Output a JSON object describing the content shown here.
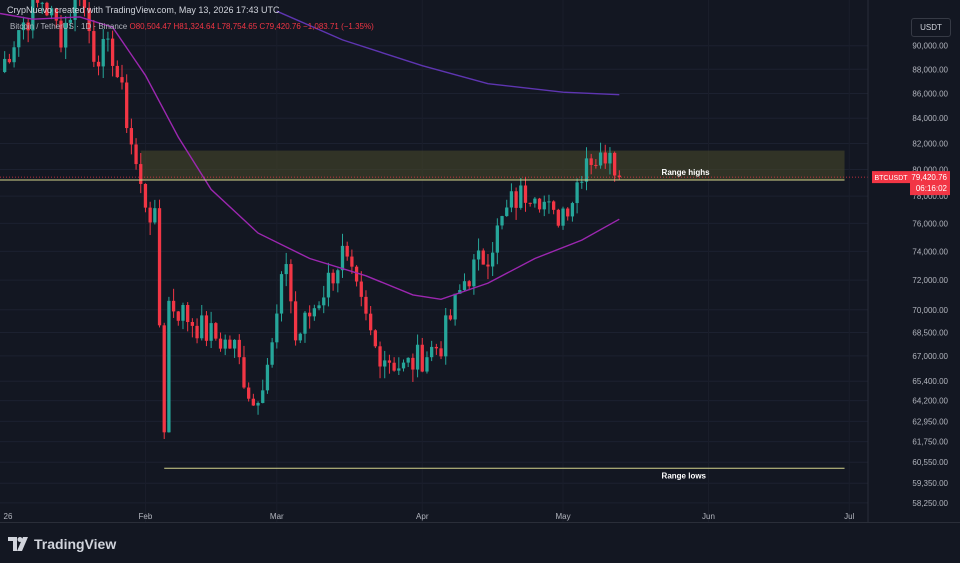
{
  "caption": "CrypNuevo created with TradingView.com, May 13, 2026 17:43 UTC",
  "legend": {
    "symbol": "Bitcoin / TetherUS · 1D · Binance",
    "open": "O80,504.47",
    "high": "H81,324.64",
    "low": "L78,754.65",
    "close": "C79,420.76",
    "change": "−1,083.71 (−1.35%)"
  },
  "currency": "USDT",
  "brand": "TradingView",
  "price_tag": {
    "symbol": "BTCUSDT",
    "price": "79,420.76",
    "countdown": "06:16:02"
  },
  "colors": {
    "up": "#26a69a",
    "down": "#f23645",
    "ma_fast": "#9c27b0",
    "ma_slow": "#5e35b1",
    "zone": "#4b4a2a",
    "level": "#d4d48c"
  },
  "chart_data": {
    "type": "candlestick",
    "title": "",
    "xlabel": "",
    "ylabel": "",
    "x_ticks": [
      "26",
      "Feb",
      "Mar",
      "Apr",
      "May",
      "Jun",
      "Jul"
    ],
    "y_ticks": [
      "90,000.00",
      "88,000.00",
      "86,000.00",
      "84,000.00",
      "82,000.00",
      "80,000.00",
      "78,000.00",
      "76,000.00",
      "74,000.00",
      "72,000.00",
      "70,000.00",
      "68,500.00",
      "67,000.00",
      "65,400.00",
      "64,200.00",
      "62,950.00",
      "61,750.00",
      "60,550.00",
      "59,350.00",
      "58,250.00"
    ],
    "y_scale": "log",
    "ylim": [
      57200,
      94000
    ],
    "date_range": [
      "2026-01-01",
      "2026-07-05"
    ],
    "current_price": 79420.76,
    "annotations": [
      {
        "label": "Range highs",
        "y": 79200,
        "from": "2026-01-01",
        "to": "2026-06-30",
        "zone_top": 81450
      },
      {
        "label": "Range lows",
        "y": 60200,
        "from": "2026-02-05",
        "to": "2026-06-30"
      }
    ],
    "ohlc_pivots": [
      {
        "date": "2026-01-01",
        "close": 87800
      },
      {
        "date": "2026-01-05",
        "close": 91500
      },
      {
        "date": "2026-01-10",
        "close": 94000
      },
      {
        "date": "2026-01-14",
        "close": 91000
      },
      {
        "date": "2026-01-18",
        "close": 95000
      },
      {
        "date": "2026-01-21",
        "close": 89500
      },
      {
        "date": "2026-01-25",
        "close": 89300
      },
      {
        "date": "2026-01-28",
        "close": 84000
      },
      {
        "date": "2026-01-31",
        "close": 78500
      },
      {
        "date": "2026-02-03",
        "close": 76000
      },
      {
        "date": "2026-02-05",
        "close": 62800
      },
      {
        "date": "2026-02-06",
        "close": 70500
      },
      {
        "date": "2026-02-10",
        "close": 69500
      },
      {
        "date": "2026-02-14",
        "close": 68500
      },
      {
        "date": "2026-02-20",
        "close": 67500
      },
      {
        "date": "2026-02-24",
        "close": 64000
      },
      {
        "date": "2026-02-28",
        "close": 67500
      },
      {
        "date": "2026-03-03",
        "close": 73500
      },
      {
        "date": "2026-03-05",
        "close": 68000
      },
      {
        "date": "2026-03-10",
        "close": 70800
      },
      {
        "date": "2026-03-15",
        "close": 73800
      },
      {
        "date": "2026-03-18",
        "close": 71000
      },
      {
        "date": "2026-03-22",
        "close": 67500
      },
      {
        "date": "2026-03-28",
        "close": 66200
      },
      {
        "date": "2026-04-05",
        "close": 67800
      },
      {
        "date": "2026-04-10",
        "close": 72000
      },
      {
        "date": "2026-04-15",
        "close": 74000
      },
      {
        "date": "2026-04-20",
        "close": 77500
      },
      {
        "date": "2026-04-25",
        "close": 78800
      },
      {
        "date": "2026-04-29",
        "close": 76200
      },
      {
        "date": "2026-05-03",
        "close": 78000
      },
      {
        "date": "2026-05-06",
        "close": 81200
      },
      {
        "date": "2026-05-09",
        "close": 80600
      },
      {
        "date": "2026-05-11",
        "close": 82100
      },
      {
        "date": "2026-05-13",
        "close": 79420.76
      }
    ],
    "series": [
      {
        "type": "line",
        "points": [
          {
            "date": "2026-01-01",
            "y": 92800
          },
          {
            "date": "2026-01-08",
            "y": 92300
          },
          {
            "date": "2026-01-18",
            "y": 92500
          },
          {
            "date": "2026-01-25",
            "y": 91600
          },
          {
            "date": "2026-02-01",
            "y": 87500
          },
          {
            "date": "2026-02-08",
            "y": 82500
          },
          {
            "date": "2026-02-15",
            "y": 78500
          },
          {
            "date": "2026-02-25",
            "y": 75300
          },
          {
            "date": "2026-03-08",
            "y": 73500
          },
          {
            "date": "2026-03-20",
            "y": 72300
          },
          {
            "date": "2026-03-30",
            "y": 71000
          },
          {
            "date": "2026-04-05",
            "y": 70700
          },
          {
            "date": "2026-04-15",
            "y": 71800
          },
          {
            "date": "2026-04-25",
            "y": 73500
          },
          {
            "date": "2026-05-05",
            "y": 74800
          },
          {
            "date": "2026-05-13",
            "y": 76300
          }
        ]
      },
      {
        "type": "line",
        "points": [
          {
            "date": "2026-03-01",
            "y": 93000
          },
          {
            "date": "2026-03-15",
            "y": 90500
          },
          {
            "date": "2026-04-01",
            "y": 88300
          },
          {
            "date": "2026-04-15",
            "y": 86800
          },
          {
            "date": "2026-05-01",
            "y": 86100
          },
          {
            "date": "2026-05-13",
            "y": 85900
          }
        ]
      }
    ]
  }
}
